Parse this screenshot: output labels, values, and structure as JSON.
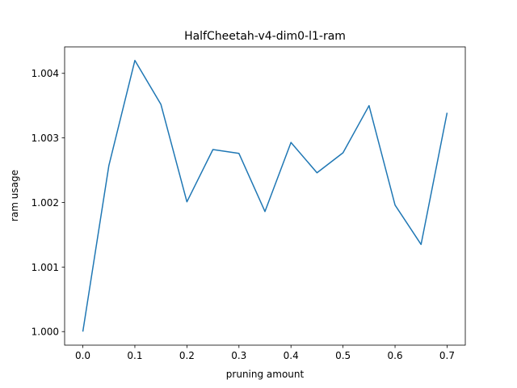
{
  "chart_data": {
    "type": "line",
    "title": "HalfCheetah-v4-dim0-l1-ram",
    "xlabel": "pruning amount",
    "ylabel": "ram usage",
    "x": [
      0.0,
      0.05,
      0.1,
      0.15,
      0.2,
      0.25,
      0.3,
      0.35,
      0.4,
      0.45,
      0.5,
      0.55,
      0.6,
      0.65,
      0.7
    ],
    "series": [
      {
        "color": "#1f77b4",
        "values": [
          1.0,
          1.00257,
          1.0042,
          1.00352,
          1.00201,
          1.00282,
          1.00276,
          1.00186,
          1.00293,
          1.00246,
          1.00277,
          1.0035,
          1.00196,
          1.00135,
          1.00339
        ]
      }
    ],
    "xlim": [
      -0.035,
      0.735
    ],
    "ylim": [
      0.99979,
      1.00441
    ],
    "xticks": [
      0.0,
      0.1,
      0.2,
      0.3,
      0.4,
      0.5,
      0.6,
      0.7
    ],
    "xtick_labels": [
      "0.0",
      "0.1",
      "0.2",
      "0.3",
      "0.4",
      "0.5",
      "0.6",
      "0.7"
    ],
    "yticks": [
      1.0,
      1.001,
      1.002,
      1.003,
      1.004
    ],
    "ytick_labels": [
      "1.000",
      "1.001",
      "1.002",
      "1.003",
      "1.004"
    ],
    "grid": false
  }
}
